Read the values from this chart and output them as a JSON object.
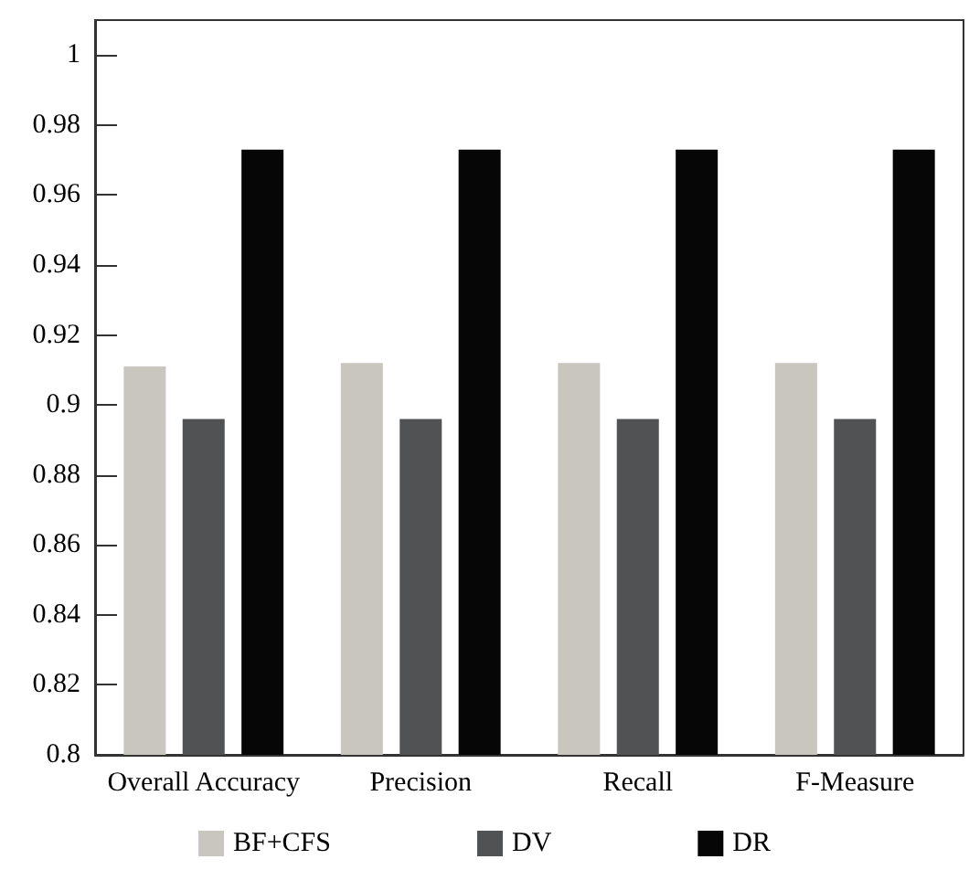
{
  "chart_data": {
    "type": "bar",
    "categories": [
      "Overall Accuracy",
      "Precision",
      "Recall",
      "F-Measure"
    ],
    "series": [
      {
        "name": "BF+CFS",
        "color": "#c9c6bf",
        "values": [
          0.911,
          0.912,
          0.912,
          0.912
        ]
      },
      {
        "name": "DV",
        "color": "#515254",
        "values": [
          0.896,
          0.896,
          0.896,
          0.896
        ]
      },
      {
        "name": "DR",
        "color": "#060606",
        "values": [
          0.973,
          0.973,
          0.973,
          0.973
        ]
      }
    ],
    "ylim": [
      0.8,
      1.01
    ],
    "yticks": [
      0.8,
      0.82,
      0.84,
      0.86,
      0.88,
      0.9,
      0.92,
      0.94,
      0.96,
      0.98,
      1
    ],
    "grid": false,
    "legend": "bottom"
  }
}
